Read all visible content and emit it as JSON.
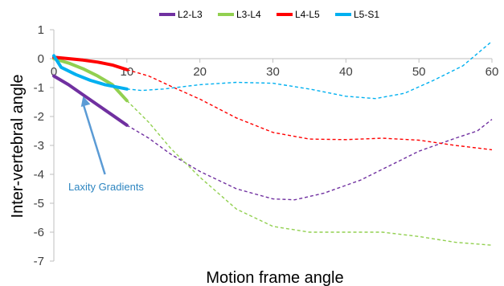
{
  "chart_data": {
    "type": "line",
    "title": "",
    "xlabel": "Motion frame angle",
    "ylabel": "Inter-vertebral angle",
    "xlim": [
      0,
      60
    ],
    "ylim": [
      -7,
      1
    ],
    "x_ticks": [
      0,
      10,
      20,
      30,
      40,
      50,
      60
    ],
    "y_ticks": [
      1,
      0,
      -1,
      -2,
      -3,
      -4,
      -5,
      -6,
      -7
    ],
    "grid": false,
    "legend_position": "top",
    "series": [
      {
        "name": "L2-L3",
        "color": "#7030A0",
        "solid": [
          [
            0,
            -0.6
          ],
          [
            2,
            -0.9
          ],
          [
            4,
            -1.25
          ],
          [
            6,
            -1.6
          ],
          [
            8,
            -1.95
          ],
          [
            10,
            -2.3
          ]
        ],
        "dashed": [
          [
            10,
            -2.3
          ],
          [
            13,
            -2.75
          ],
          [
            16,
            -3.3
          ],
          [
            20,
            -3.9
          ],
          [
            25,
            -4.5
          ],
          [
            30,
            -4.85
          ],
          [
            33,
            -4.88
          ],
          [
            37,
            -4.65
          ],
          [
            42,
            -4.2
          ],
          [
            46,
            -3.7
          ],
          [
            50,
            -3.2
          ],
          [
            55,
            -2.75
          ],
          [
            58,
            -2.5
          ],
          [
            60,
            -2.1
          ]
        ]
      },
      {
        "name": "L3-L4",
        "color": "#92D050",
        "solid": [
          [
            0,
            0.0
          ],
          [
            2,
            -0.15
          ],
          [
            4,
            -0.35
          ],
          [
            6,
            -0.6
          ],
          [
            8,
            -0.9
          ],
          [
            10,
            -1.45
          ]
        ],
        "dashed": [
          [
            10,
            -1.45
          ],
          [
            13,
            -2.2
          ],
          [
            16,
            -3.1
          ],
          [
            20,
            -4.1
          ],
          [
            25,
            -5.2
          ],
          [
            30,
            -5.8
          ],
          [
            35,
            -6.0
          ],
          [
            40,
            -6.0
          ],
          [
            45,
            -6.0
          ],
          [
            50,
            -6.15
          ],
          [
            55,
            -6.35
          ],
          [
            60,
            -6.45
          ]
        ]
      },
      {
        "name": "L4-L5",
        "color": "#FF0000",
        "solid": [
          [
            0,
            0.05
          ],
          [
            2,
            0.0
          ],
          [
            4,
            -0.05
          ],
          [
            6,
            -0.12
          ],
          [
            8,
            -0.22
          ],
          [
            10,
            -0.38
          ]
        ],
        "dashed": [
          [
            10,
            -0.38
          ],
          [
            13,
            -0.6
          ],
          [
            16,
            -0.95
          ],
          [
            20,
            -1.4
          ],
          [
            25,
            -2.05
          ],
          [
            30,
            -2.55
          ],
          [
            35,
            -2.78
          ],
          [
            40,
            -2.8
          ],
          [
            45,
            -2.75
          ],
          [
            50,
            -2.82
          ],
          [
            55,
            -3.0
          ],
          [
            60,
            -3.15
          ]
        ]
      },
      {
        "name": "L5-S1",
        "color": "#00B0F0",
        "solid": [
          [
            0,
            0.1
          ],
          [
            1,
            -0.3
          ],
          [
            3,
            -0.55
          ],
          [
            5,
            -0.75
          ],
          [
            7,
            -0.9
          ],
          [
            10,
            -1.05
          ]
        ],
        "dashed": [
          [
            10,
            -1.05
          ],
          [
            12,
            -1.1
          ],
          [
            15,
            -1.05
          ],
          [
            20,
            -0.9
          ],
          [
            25,
            -0.82
          ],
          [
            30,
            -0.85
          ],
          [
            35,
            -1.05
          ],
          [
            40,
            -1.3
          ],
          [
            44,
            -1.38
          ],
          [
            48,
            -1.2
          ],
          [
            52,
            -0.75
          ],
          [
            56,
            -0.25
          ],
          [
            60,
            0.6
          ]
        ]
      }
    ],
    "annotations": [
      {
        "text": "Laxity Gradients",
        "color": "#2E86C1",
        "arrow_to": [
          4,
          -1.3
        ],
        "arrow_from": [
          7,
          -4.0
        ]
      }
    ]
  }
}
